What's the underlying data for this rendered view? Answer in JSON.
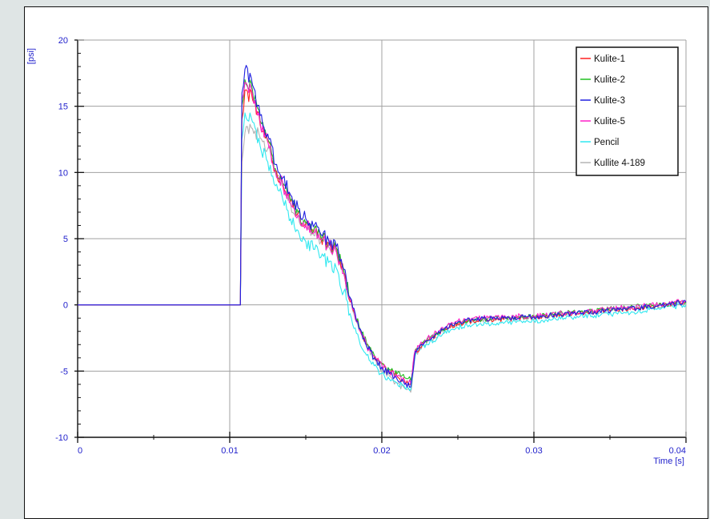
{
  "chart_data": {
    "type": "line",
    "title": "",
    "xlabel": "Time [s]",
    "ylabel": "[psi]",
    "xlim": [
      0,
      0.04
    ],
    "ylim": [
      -10,
      20
    ],
    "x_ticks": [
      0,
      0.01,
      0.02,
      0.03,
      0.04
    ],
    "x_tick_labels": [
      "0",
      "0.01",
      "0.02",
      "0.03",
      "0.04"
    ],
    "y_ticks": [
      -10,
      -5,
      0,
      5,
      10,
      15,
      20
    ],
    "y_tick_labels": [
      "-10",
      "-5",
      "0",
      "5",
      "10",
      "15",
      "20"
    ],
    "grid": true,
    "legend_position": "top-right",
    "colors": {
      "axis": "#2222cc",
      "grid": "#a0a0a0",
      "background": "#ffffff",
      "page": "#dfe5e5"
    },
    "series": [
      {
        "name": "Kulite-1",
        "color": "#ff2020",
        "points": [
          [
            0,
            0
          ],
          [
            0.0107,
            0
          ],
          [
            0.0108,
            14
          ],
          [
            0.011,
            16.2
          ],
          [
            0.0115,
            15.5
          ],
          [
            0.012,
            13.6
          ],
          [
            0.0125,
            12.3
          ],
          [
            0.013,
            10.2
          ],
          [
            0.0135,
            9.1
          ],
          [
            0.014,
            7.8
          ],
          [
            0.0145,
            6.9
          ],
          [
            0.015,
            6.1
          ],
          [
            0.0155,
            5.5
          ],
          [
            0.016,
            5.0
          ],
          [
            0.0165,
            4.6
          ],
          [
            0.017,
            4.2
          ],
          [
            0.0175,
            2.5
          ],
          [
            0.018,
            0.3
          ],
          [
            0.0185,
            -1.7
          ],
          [
            0.019,
            -3.0
          ],
          [
            0.0195,
            -3.9
          ],
          [
            0.02,
            -4.5
          ],
          [
            0.0205,
            -5.0
          ],
          [
            0.021,
            -5.4
          ],
          [
            0.0215,
            -5.8
          ],
          [
            0.0219,
            -6.0
          ],
          [
            0.0222,
            -3.6
          ],
          [
            0.0225,
            -3.2
          ],
          [
            0.023,
            -2.7
          ],
          [
            0.024,
            -1.9
          ],
          [
            0.025,
            -1.4
          ],
          [
            0.026,
            -1.2
          ],
          [
            0.028,
            -1.1
          ],
          [
            0.03,
            -0.9
          ],
          [
            0.032,
            -0.7
          ],
          [
            0.034,
            -0.5
          ],
          [
            0.036,
            -0.3
          ],
          [
            0.038,
            -0.1
          ],
          [
            0.04,
            0.2
          ]
        ]
      },
      {
        "name": "Kulite-2",
        "color": "#20c020",
        "points": [
          [
            0,
            0
          ],
          [
            0.0107,
            0
          ],
          [
            0.0108,
            15
          ],
          [
            0.011,
            17.0
          ],
          [
            0.0115,
            16.2
          ],
          [
            0.012,
            13.9
          ],
          [
            0.0125,
            12.5
          ],
          [
            0.013,
            10.3
          ],
          [
            0.0135,
            9.2
          ],
          [
            0.014,
            7.9
          ],
          [
            0.0145,
            7.0
          ],
          [
            0.015,
            6.2
          ],
          [
            0.0155,
            5.6
          ],
          [
            0.016,
            5.1
          ],
          [
            0.0165,
            4.7
          ],
          [
            0.017,
            4.3
          ],
          [
            0.0175,
            2.6
          ],
          [
            0.018,
            0.4
          ],
          [
            0.0185,
            -1.6
          ],
          [
            0.019,
            -2.9
          ],
          [
            0.0195,
            -3.8
          ],
          [
            0.02,
            -4.4
          ],
          [
            0.0205,
            -4.9
          ],
          [
            0.021,
            -5.2
          ],
          [
            0.0215,
            -5.5
          ],
          [
            0.0219,
            -5.7
          ],
          [
            0.0222,
            -3.4
          ],
          [
            0.0225,
            -3.0
          ],
          [
            0.023,
            -2.6
          ],
          [
            0.024,
            -1.8
          ],
          [
            0.025,
            -1.3
          ],
          [
            0.026,
            -1.1
          ],
          [
            0.028,
            -1.0
          ],
          [
            0.03,
            -0.8
          ],
          [
            0.032,
            -0.6
          ],
          [
            0.034,
            -0.4
          ],
          [
            0.036,
            -0.2
          ],
          [
            0.038,
            0.0
          ],
          [
            0.04,
            0.2
          ]
        ]
      },
      {
        "name": "Kulite-3",
        "color": "#2020e0",
        "points": [
          [
            0,
            0
          ],
          [
            0.0107,
            0
          ],
          [
            0.0108,
            16
          ],
          [
            0.011,
            17.8
          ],
          [
            0.0115,
            16.6
          ],
          [
            0.012,
            14.3
          ],
          [
            0.0125,
            12.9
          ],
          [
            0.013,
            10.6
          ],
          [
            0.0135,
            9.6
          ],
          [
            0.014,
            8.3
          ],
          [
            0.0145,
            7.3
          ],
          [
            0.015,
            6.5
          ],
          [
            0.0155,
            5.9
          ],
          [
            0.016,
            5.3
          ],
          [
            0.0165,
            4.9
          ],
          [
            0.017,
            4.4
          ],
          [
            0.0175,
            2.7
          ],
          [
            0.018,
            0.4
          ],
          [
            0.0185,
            -1.8
          ],
          [
            0.019,
            -3.1
          ],
          [
            0.0195,
            -4.0
          ],
          [
            0.02,
            -4.7
          ],
          [
            0.0205,
            -5.2
          ],
          [
            0.021,
            -5.6
          ],
          [
            0.0215,
            -6.0
          ],
          [
            0.0219,
            -6.2
          ],
          [
            0.0222,
            -3.5
          ],
          [
            0.0225,
            -3.1
          ],
          [
            0.023,
            -2.7
          ],
          [
            0.024,
            -1.9
          ],
          [
            0.025,
            -1.3
          ],
          [
            0.026,
            -1.1
          ],
          [
            0.028,
            -1.0
          ],
          [
            0.03,
            -0.9
          ],
          [
            0.032,
            -0.7
          ],
          [
            0.034,
            -0.5
          ],
          [
            0.036,
            -0.3
          ],
          [
            0.038,
            -0.1
          ],
          [
            0.04,
            0.2
          ]
        ]
      },
      {
        "name": "Kulite-5",
        "color": "#ff20c8",
        "points": [
          [
            0,
            0
          ],
          [
            0.0107,
            0
          ],
          [
            0.0108,
            15.5
          ],
          [
            0.011,
            16.8
          ],
          [
            0.0115,
            15.9
          ],
          [
            0.012,
            13.8
          ],
          [
            0.0125,
            12.4
          ],
          [
            0.013,
            10.1
          ],
          [
            0.0135,
            9.0
          ],
          [
            0.014,
            7.7
          ],
          [
            0.0145,
            6.8
          ],
          [
            0.015,
            6.0
          ],
          [
            0.0155,
            5.4
          ],
          [
            0.016,
            4.9
          ],
          [
            0.0165,
            4.5
          ],
          [
            0.017,
            4.1
          ],
          [
            0.0175,
            2.4
          ],
          [
            0.018,
            0.2
          ],
          [
            0.0185,
            -1.8
          ],
          [
            0.019,
            -3.1
          ],
          [
            0.0195,
            -3.9
          ],
          [
            0.02,
            -4.5
          ],
          [
            0.0205,
            -5.0
          ],
          [
            0.021,
            -5.4
          ],
          [
            0.0215,
            -5.7
          ],
          [
            0.0219,
            -5.9
          ],
          [
            0.0222,
            -3.4
          ],
          [
            0.0225,
            -3.0
          ],
          [
            0.023,
            -2.5
          ],
          [
            0.024,
            -1.7
          ],
          [
            0.025,
            -1.2
          ],
          [
            0.026,
            -1.0
          ],
          [
            0.028,
            -0.9
          ],
          [
            0.03,
            -0.8
          ],
          [
            0.032,
            -0.6
          ],
          [
            0.034,
            -0.4
          ],
          [
            0.036,
            -0.2
          ],
          [
            0.038,
            0.0
          ],
          [
            0.04,
            0.3
          ]
        ]
      },
      {
        "name": "Pencil",
        "color": "#30e8f0",
        "points": [
          [
            0,
            0
          ],
          [
            0.0107,
            0
          ],
          [
            0.0108,
            12.5
          ],
          [
            0.011,
            14.5
          ],
          [
            0.0115,
            13.8
          ],
          [
            0.012,
            12.0
          ],
          [
            0.0125,
            10.8
          ],
          [
            0.013,
            9.0
          ],
          [
            0.0135,
            7.9
          ],
          [
            0.014,
            6.5
          ],
          [
            0.0145,
            5.6
          ],
          [
            0.015,
            4.8
          ],
          [
            0.0155,
            4.2
          ],
          [
            0.016,
            3.6
          ],
          [
            0.0165,
            3.2
          ],
          [
            0.017,
            2.8
          ],
          [
            0.0175,
            1.0
          ],
          [
            0.018,
            -1.0
          ],
          [
            0.0185,
            -2.6
          ],
          [
            0.019,
            -3.8
          ],
          [
            0.0195,
            -4.6
          ],
          [
            0.02,
            -5.2
          ],
          [
            0.0205,
            -5.6
          ],
          [
            0.021,
            -5.9
          ],
          [
            0.0215,
            -6.2
          ],
          [
            0.0219,
            -6.4
          ],
          [
            0.0222,
            -3.8
          ],
          [
            0.0225,
            -3.4
          ],
          [
            0.023,
            -3.0
          ],
          [
            0.024,
            -2.2
          ],
          [
            0.025,
            -1.7
          ],
          [
            0.026,
            -1.5
          ],
          [
            0.028,
            -1.4
          ],
          [
            0.03,
            -1.2
          ],
          [
            0.032,
            -1.0
          ],
          [
            0.034,
            -0.8
          ],
          [
            0.036,
            -0.6
          ],
          [
            0.038,
            -0.3
          ],
          [
            0.04,
            0.0
          ]
        ]
      },
      {
        "name": "Kullite 4-189",
        "color": "#b4b4b4",
        "points": [
          [
            0,
            0
          ],
          [
            0.0107,
            0
          ],
          [
            0.0108,
            10.8
          ],
          [
            0.011,
            13.0
          ],
          [
            0.0115,
            13.3
          ],
          [
            0.012,
            12.6
          ],
          [
            0.0125,
            11.8
          ],
          [
            0.013,
            10.0
          ],
          [
            0.0135,
            8.9
          ],
          [
            0.014,
            7.6
          ],
          [
            0.0145,
            6.7
          ],
          [
            0.015,
            5.9
          ],
          [
            0.0155,
            5.3
          ],
          [
            0.016,
            4.8
          ],
          [
            0.0165,
            4.4
          ],
          [
            0.017,
            4.0
          ],
          [
            0.0175,
            2.3
          ],
          [
            0.018,
            0.1
          ],
          [
            0.0185,
            -1.9
          ],
          [
            0.019,
            -3.2
          ],
          [
            0.0195,
            -4.1
          ],
          [
            0.02,
            -4.8
          ],
          [
            0.0205,
            -5.4
          ],
          [
            0.021,
            -5.9
          ],
          [
            0.0215,
            -6.3
          ],
          [
            0.0219,
            -6.6
          ],
          [
            0.0222,
            -3.7
          ],
          [
            0.0225,
            -3.3
          ],
          [
            0.023,
            -2.8
          ],
          [
            0.024,
            -2.0
          ],
          [
            0.025,
            -1.5
          ],
          [
            0.026,
            -1.2
          ],
          [
            0.028,
            -1.1
          ],
          [
            0.03,
            -0.9
          ],
          [
            0.032,
            -0.7
          ],
          [
            0.034,
            -0.5
          ],
          [
            0.036,
            -0.3
          ],
          [
            0.038,
            -0.1
          ],
          [
            0.04,
            0.1
          ]
        ]
      }
    ]
  }
}
